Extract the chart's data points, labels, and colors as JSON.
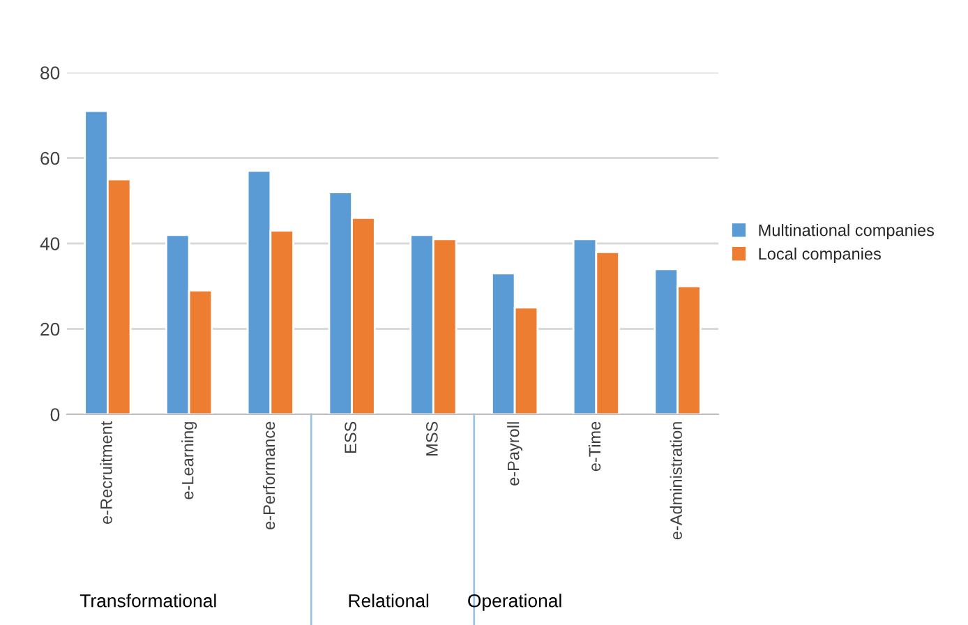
{
  "chart_data": {
    "type": "bar",
    "categories": [
      "e-Recruitment",
      "e-Learning",
      "e-Performance",
      "ESS",
      "MSS",
      "e-Payroll",
      "e-Time",
      "e-Administration"
    ],
    "series": [
      {
        "name": "Multinational companies",
        "color": "#5b9bd5",
        "values": [
          71,
          42,
          57,
          52,
          42,
          33,
          41,
          34
        ]
      },
      {
        "name": "Local companies",
        "color": "#ed7d31",
        "values": [
          55,
          29,
          43,
          46,
          41,
          25,
          38,
          30
        ]
      }
    ],
    "ylim": [
      0,
      80
    ],
    "yticks": [
      0,
      20,
      40,
      60,
      80
    ],
    "grid": "y",
    "legend": "right",
    "annotations": [
      "Transformational",
      "Relational",
      "Operational"
    ]
  }
}
